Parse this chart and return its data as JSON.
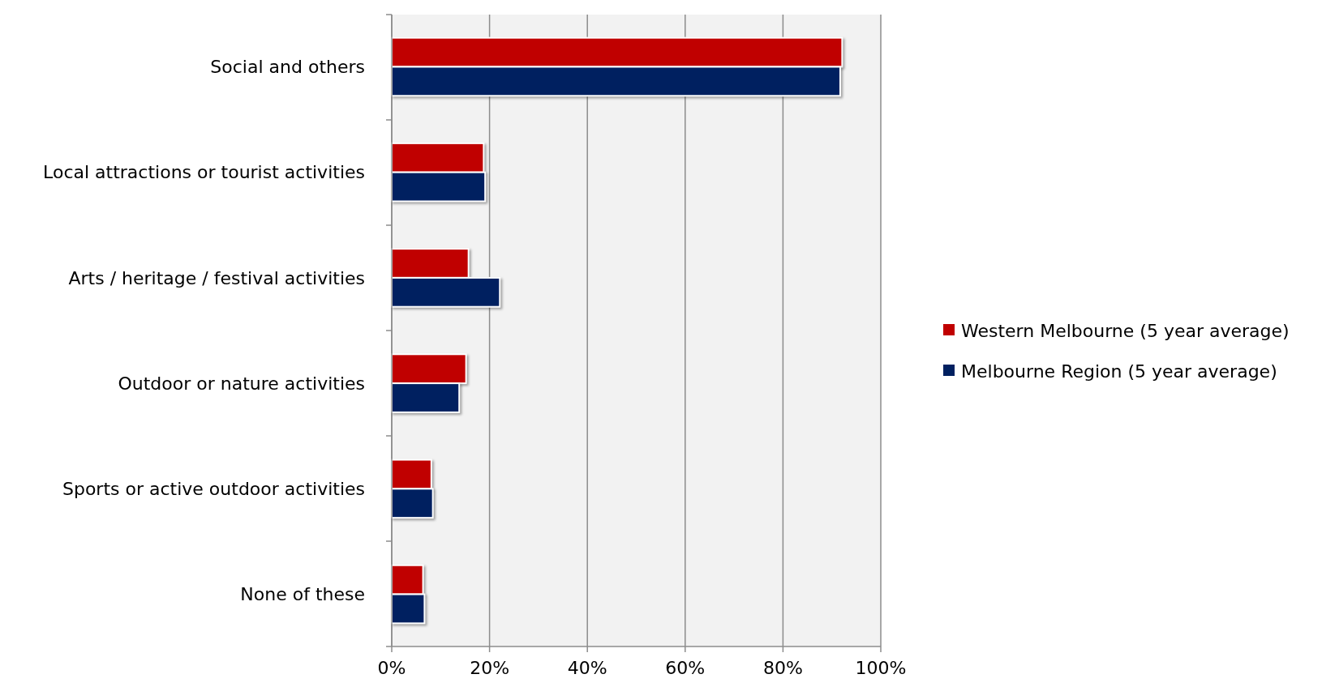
{
  "chart_data": {
    "type": "bar",
    "orientation": "horizontal",
    "categories": [
      "Social and others",
      "Local attractions or tourist activities",
      "Arts / heritage / festival activities",
      "Outdoor or nature activities",
      "Sports or active outdoor activities",
      "None of these"
    ],
    "series": [
      {
        "name": "Western Melbourne (5 year average)",
        "color": "#c00000",
        "values": [
          92.1,
          18.8,
          15.7,
          15.2,
          8.1,
          6.4
        ]
      },
      {
        "name": "Melbourne Region (5 year average)",
        "color": "#002060",
        "values": [
          91.7,
          19.1,
          22.1,
          13.8,
          8.4,
          6.7
        ]
      }
    ],
    "xlim": [
      0,
      100
    ],
    "xticks": [
      {
        "value": 0,
        "label": "0%"
      },
      {
        "value": 20,
        "label": "20%"
      },
      {
        "value": 40,
        "label": "40%"
      },
      {
        "value": 60,
        "label": "60%"
      },
      {
        "value": 80,
        "label": "80%"
      },
      {
        "value": 100,
        "label": "100%"
      }
    ],
    "grid": "x",
    "legend": "right"
  }
}
